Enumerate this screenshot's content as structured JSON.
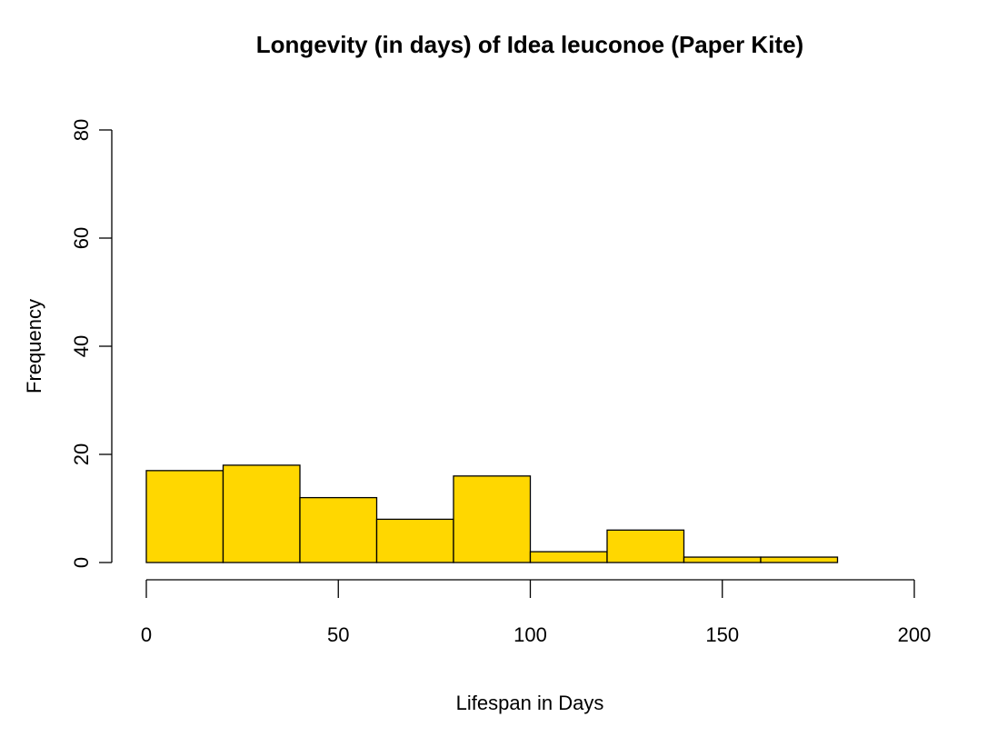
{
  "chart_data": {
    "type": "bar",
    "title": "Longevity (in days) of Idea leuconoe (Paper Kite)",
    "xlabel": "Lifespan in Days",
    "ylabel": "Frequency",
    "bins": [
      {
        "start": 0,
        "end": 20,
        "count": 17
      },
      {
        "start": 20,
        "end": 40,
        "count": 18
      },
      {
        "start": 40,
        "end": 60,
        "count": 12
      },
      {
        "start": 60,
        "end": 80,
        "count": 8
      },
      {
        "start": 80,
        "end": 100,
        "count": 16
      },
      {
        "start": 100,
        "end": 120,
        "count": 2
      },
      {
        "start": 120,
        "end": 140,
        "count": 6
      },
      {
        "start": 140,
        "end": 160,
        "count": 1
      },
      {
        "start": 160,
        "end": 180,
        "count": 1
      }
    ],
    "xlim": [
      0,
      200
    ],
    "ylim": [
      0,
      80
    ],
    "x_ticks": [
      "0",
      "50",
      "100",
      "150",
      "200"
    ],
    "y_ticks": [
      "0",
      "20",
      "40",
      "60",
      "80"
    ],
    "grid": false,
    "colors": {
      "bar_fill": "#FFD700",
      "bar_border": "#000000"
    }
  }
}
